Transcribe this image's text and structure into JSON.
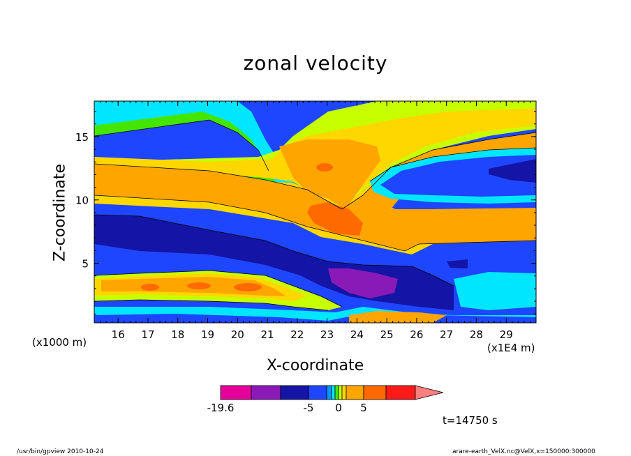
{
  "chart_data": {
    "type": "heatmap",
    "title": "zonal velocity",
    "xlabel": "X-coordinate",
    "ylabel": "Z-coordinate",
    "x_unit_label": "(x1E4 m)",
    "y_unit_label": "(x1000 m)",
    "xlim": [
      15.2,
      30.0
    ],
    "ylim": [
      0.3,
      17.8
    ],
    "x_ticks": [
      16,
      17,
      18,
      19,
      20,
      21,
      22,
      23,
      24,
      25,
      26,
      27,
      28,
      29
    ],
    "y_ticks": [
      5,
      10,
      15
    ],
    "colorbar": {
      "levels": [
        -19.6,
        -15,
        -10,
        -5,
        -3,
        -2,
        -1,
        0,
        1,
        2,
        5,
        8,
        11
      ],
      "colors": [
        "#e6009a",
        "#8a1ab8",
        "#1414a6",
        "#1f46ff",
        "#0096ff",
        "#00e6ff",
        "#44e600",
        "#c8ff00",
        "#ffd700",
        "#ffa500",
        "#ff6a00",
        "#ff1a1a",
        "#ff7f7f"
      ],
      "labels": [
        {
          "text": "-19.6",
          "value": -19.6
        },
        {
          "text": "-5",
          "value": -5
        },
        {
          "text": "0",
          "value": 0
        },
        {
          "text": "5",
          "value": 5
        }
      ]
    },
    "regions": [
      {
        "name": "lower-blue-layer",
        "x": [
          15.2,
          30.0
        ],
        "z": [
          0.3,
          4.5
        ],
        "value": -4
      },
      {
        "name": "low-level-warm-band",
        "x": [
          15.2,
          23.0
        ],
        "z": [
          1.2,
          4.5
        ],
        "value": 3
      },
      {
        "name": "mid-level-deep-blue",
        "x": [
          15.2,
          27.0
        ],
        "z": [
          2.0,
          9.0
        ],
        "value": -7
      },
      {
        "name": "upper-orange-tongue",
        "x": [
          15.2,
          30.0
        ],
        "z": [
          4.8,
          12.5
        ],
        "value": 4
      },
      {
        "name": "orange-core-maximum",
        "x": [
          22.3,
          24.3
        ],
        "z": [
          7.0,
          9.4
        ],
        "value": 7
      },
      {
        "name": "purple-core-minimum",
        "x": [
          23.2,
          25.5
        ],
        "z": [
          2.3,
          4.3
        ],
        "value": -11
      },
      {
        "name": "upper-left-blue",
        "x": [
          15.2,
          21.5
        ],
        "z": [
          12.5,
          17.8
        ],
        "value": -4
      },
      {
        "name": "upper-right-blue",
        "x": [
          24.5,
          30.0
        ],
        "z": [
          9.5,
          14.5
        ],
        "value": -4
      }
    ],
    "time": "t=14750 s",
    "grid": false
  },
  "footer": {
    "left": "/usr/bin/gpview   2010-10-24",
    "right": "arare-earth_VelX.nc@VelX,x=150000:300000"
  }
}
